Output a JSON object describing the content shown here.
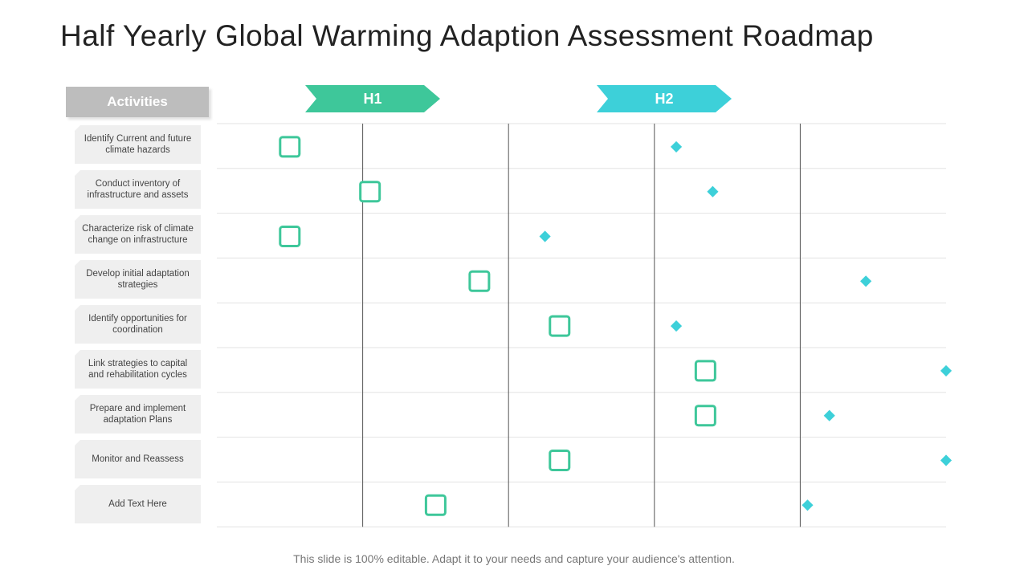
{
  "title": "Half Yearly Global Warming Adaption Assessment Roadmap",
  "activities_header": "Activities",
  "phases": [
    "H1",
    "H2"
  ],
  "activities": [
    "Identify Current and future climate hazards",
    "Conduct inventory of infrastructure and assets",
    "Characterize risk of climate change on infrastructure",
    "Develop initial adaptation strategies",
    "Identify opportunities for coordination",
    "Link strategies to capital and rehabilitation cycles",
    "Prepare and implement adaptation Plans",
    "Monitor and Reassess",
    "Add Text Here"
  ],
  "chart_data": {
    "type": "gantt",
    "periods": 5,
    "bars": [
      {
        "start": 0.5,
        "end": 3.15
      },
      {
        "start": 1.05,
        "end": 3.4
      },
      {
        "start": 0.5,
        "end": 2.25
      },
      {
        "start": 1.8,
        "end": 4.45
      },
      {
        "start": 2.35,
        "end": 3.15
      },
      {
        "start": 3.35,
        "end": 5.0
      },
      {
        "start": 3.35,
        "end": 4.2
      },
      {
        "start": 2.35,
        "end": 5.0
      },
      {
        "start": 1.5,
        "end": 4.05
      }
    ]
  },
  "colors": {
    "start_marker": "#3ec79a",
    "end_marker": "#3dd0d9",
    "grid_line": "#e3e3e3",
    "divider": "#555555"
  },
  "footer": "This slide is 100% editable. Adapt it to your needs and capture your audience's attention."
}
